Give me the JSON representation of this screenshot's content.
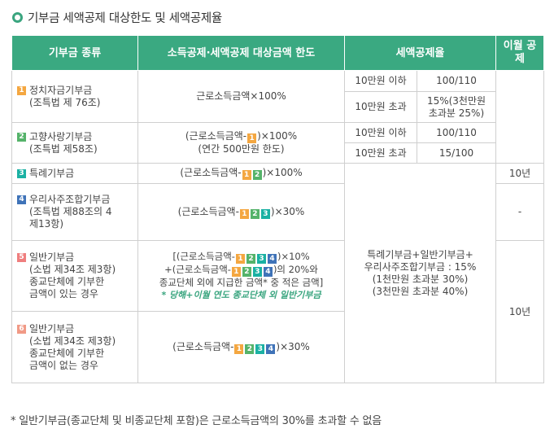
{
  "title": "기부금 세액공제 대상한도 및 세액공제율",
  "headers": {
    "kind": "기부금 종류",
    "limit": "소득공제·세액공제 대상금액 한도",
    "rate": "세액공제율",
    "carry": "이월 공제"
  },
  "rows": {
    "r1": {
      "num": "1",
      "name1": "정치자금기부금",
      "name2": "(조특법 제 76조)",
      "limit": "근로소득금액×100%",
      "t1_label": "10만원 이하",
      "t1_rate": "100/110",
      "t2_label": "10만원 초과",
      "t2_rate1": "15%(3천만원",
      "t2_rate2": "초과분 25%)"
    },
    "r2": {
      "num": "2",
      "name1": "고향사랑기부금",
      "name2": "(조특법 제58조)",
      "limit1_pre": "(근로소득금액-",
      "limit1_post": ")×100%",
      "limit2": "(연간 500만원 한도)",
      "t1_label": "10만원 이하",
      "t1_rate": "100/110",
      "t2_label": "10만원 초과",
      "t2_rate": "15/100"
    },
    "r3": {
      "num": "3",
      "name": "특례기부금",
      "limit_pre": "(근로소득금액-",
      "limit_post": ")×100%",
      "carry": "10년"
    },
    "r4": {
      "num": "4",
      "name1": "우리사주조합기부금",
      "name2": "(조특법 제88조의 4",
      "name3": "제13항)",
      "limit_pre": "(근로소득금액-",
      "limit_post": ")×30%",
      "carry": "-"
    },
    "r5": {
      "num": "5",
      "name1": "일반기부금",
      "name2": "(소법 제34조 제3항)",
      "name3": "종교단체에 기부한",
      "name4": "금액이 있는 경우",
      "l1_pre": "[(근로소득금액-",
      "l1_post": ")×10%",
      "l2_pre": "+(근로소득금액-",
      "l2_post": ")의 20%와",
      "l3": "종교단체 외에 지급한 금액*",
      "l3b": " 중 적은 금액]",
      "note": "* 당해+이월 연도 종교단체 외 일반기부금"
    },
    "r6": {
      "num": "6",
      "name1": "일반기부금",
      "name2": "(소법 제34조 제3항)",
      "name3": "종교단체에 기부한",
      "name4": "금액이 없는 경우",
      "limit_pre": "(근로소득금액-",
      "limit_post": ")×30%"
    },
    "shared_rate": {
      "line1": "특례기부금+일반기부금+",
      "line2": "우리사주조합기부금 : 15%",
      "line3": "(1천만원 초과분 30%)",
      "line4": "(3천만원 초과분 40%)"
    },
    "shared_carry_56": "10년"
  },
  "badges": {
    "b1": "1",
    "b2": "2",
    "b3": "3",
    "b4": "4"
  },
  "footnote": "* 일반기부금(종교단체 및 비종교단체 포함)은 근로소득금액의 30%를 초과할 수 없음"
}
